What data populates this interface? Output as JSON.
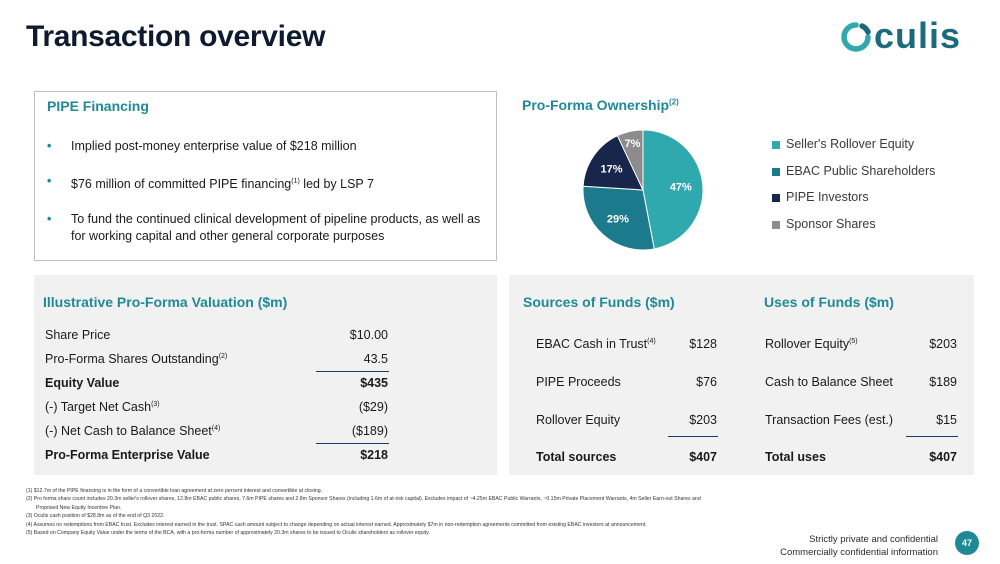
{
  "slide": {
    "title": "Transaction overview",
    "logo_text": "culis",
    "page_number": "47",
    "confidential": [
      "Strictly private and confidential",
      "Commercially confidential information"
    ]
  },
  "pipe": {
    "title": "PIPE Financing",
    "bullets": [
      {
        "text": "Implied post-money enterprise value of $218 million",
        "sup": ""
      },
      {
        "text": "$76 million of committed PIPE financing",
        "sup": "(1)",
        "after": " led by LSP 7"
      },
      {
        "text": "To fund the continued clinical development of pipeline products, as well as for working capital and other general corporate purposes",
        "sup": ""
      }
    ]
  },
  "ownership": {
    "title": "Pro-Forma Ownership",
    "title_sup": "(2)"
  },
  "chart_data": {
    "type": "pie",
    "title": "Pro-Forma Ownership",
    "series": [
      {
        "name": "Seller's Rollover Equity",
        "value": 47,
        "label": "47%",
        "color": "#2fa8ae"
      },
      {
        "name": "EBAC Public Shareholders",
        "value": 29,
        "label": "29%",
        "color": "#1b7a8c"
      },
      {
        "name": "PIPE Investors",
        "value": 17,
        "label": "17%",
        "color": "#17264a"
      },
      {
        "name": "Sponsor Shares",
        "value": 7,
        "label": "7%",
        "color": "#8c8c8c"
      }
    ],
    "legend_position": "right"
  },
  "valuation": {
    "title": "Illustrative Pro-Forma Valuation ($m)",
    "rows": [
      {
        "label": "Share Price",
        "sup": "",
        "value": "$10.00",
        "bold": false
      },
      {
        "label": "Pro-Forma Shares Outstanding",
        "sup": "(2)",
        "value": "43.5",
        "bold": false
      },
      {
        "label": "Equity Value",
        "sup": "",
        "value": "$435",
        "bold": true
      },
      {
        "label": "(-) Target Net Cash",
        "sup": "(3)",
        "value": "($29)",
        "bold": false
      },
      {
        "label": "(-) Net Cash to Balance Sheet",
        "sup": "(4)",
        "value": "($189)",
        "bold": false
      },
      {
        "label": "Pro-Forma Enterprise Value",
        "sup": "",
        "value": "$218",
        "bold": true
      }
    ]
  },
  "sources": {
    "title": "Sources of Funds ($m)",
    "rows": [
      {
        "label": "EBAC Cash in Trust",
        "sup": "(4)",
        "value": "$128"
      },
      {
        "label": "PIPE Proceeds",
        "sup": "",
        "value": "$76"
      },
      {
        "label": "Rollover Equity",
        "sup": "",
        "value": "$203"
      },
      {
        "label": "Total sources",
        "sup": "",
        "value": "$407"
      }
    ]
  },
  "uses": {
    "title": "Uses of Funds ($m)",
    "rows": [
      {
        "label": "Rollover Equity",
        "sup": "(5)",
        "value": "$203"
      },
      {
        "label": "Cash to Balance Sheet",
        "sup": "",
        "value": "$189"
      },
      {
        "label": "Transaction Fees (est.)",
        "sup": "",
        "value": "$15"
      },
      {
        "label": "Total uses",
        "sup": "",
        "value": "$407"
      }
    ]
  },
  "footnotes": [
    "(1) $12.7m of the PIPE financing is in the form of a convertible loan agreement at zero percent interest and convertible at closing.",
    "(2) Pro forma share count includes 20.3m seller's rollover shares, 12.8m EBAC public shares, 7.6m PIPE shares and 2.8m Sponsor Shares (including 1.6m of at-risk capital). Excludes impact of ~4.25m EBAC Public Warrants, ~0.15m Private Placement Warrants, 4m Seller Earn-out Shares and",
    "Proposed New Equity Incentive Plan.",
    "(3) Oculis cash position of $28.8m as of the end of Q3 2022.",
    "(4) Assumes no redemptions from EBAC trust. Excludes interest earned in the trust. SPAC cash amount subject to change depending on actual interest earned. Approximately $7m in non-redemption agreements committed from existing EBAC investors at announcement.",
    "(5) Based on Company Equity Value under the terms of the BCA, with a pro-forma number of approximately 20.3m shares to be issued to Oculis shareholders as rollover equity."
  ]
}
